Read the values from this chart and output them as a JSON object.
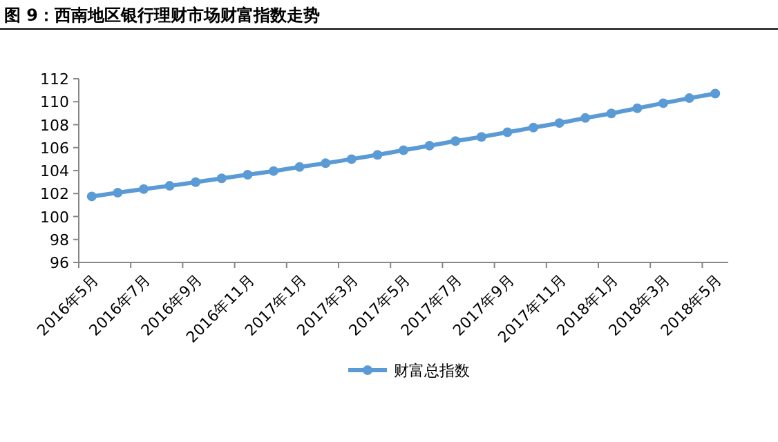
{
  "chart_data": {
    "type": "line",
    "title": "图 9：西南地区银行理财市场财富指数走势",
    "categories": [
      "2016年5月",
      null,
      "2016年7月",
      null,
      "2016年9月",
      null,
      "2016年11月",
      null,
      "2017年1月",
      null,
      "2017年3月",
      null,
      "2017年5月",
      null,
      "2017年7月",
      null,
      "2017年9月",
      null,
      "2017年11月",
      null,
      "2018年1月",
      null,
      "2018年3月",
      null,
      "2018年5月"
    ],
    "series": [
      {
        "name": "财富总指数",
        "color": "#5b9bd5",
        "values": [
          101.75,
          102.07,
          102.39,
          102.67,
          102.99,
          103.32,
          103.64,
          103.96,
          104.32,
          104.64,
          105.0,
          105.37,
          105.77,
          106.17,
          106.57,
          106.93,
          107.34,
          107.74,
          108.14,
          108.58,
          108.98,
          109.43,
          109.87,
          110.31,
          110.71
        ]
      }
    ],
    "ylim": [
      96,
      112
    ],
    "yticks": [
      96,
      98,
      100,
      102,
      104,
      106,
      108,
      110,
      112
    ],
    "grid": false,
    "legend": "bottom",
    "marker": "circle",
    "line_style": "solid"
  }
}
